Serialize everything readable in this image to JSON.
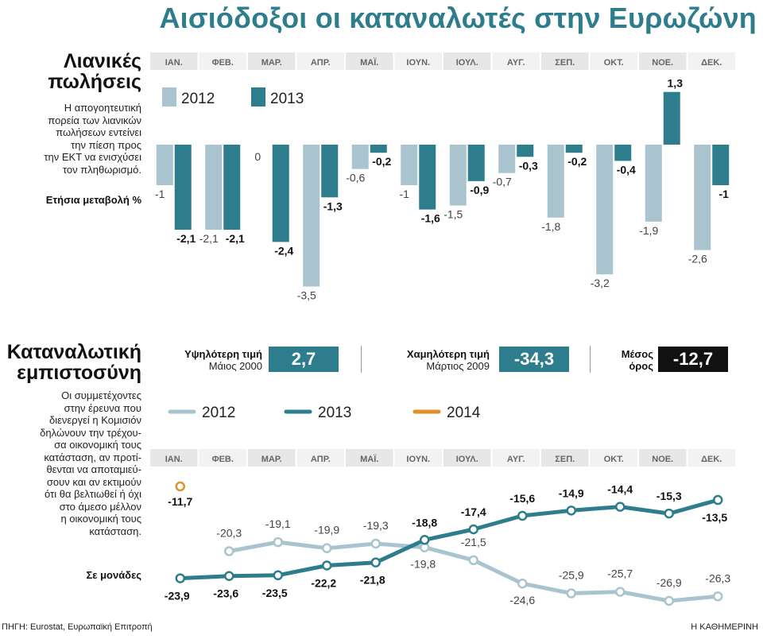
{
  "title": "Αισιόδοξοι οι καταναλωτές στην Ευρωζώνη",
  "retail": {
    "heading_line1": "Λιανικές",
    "heading_line2": "πωλήσεις",
    "description": [
      "Η απογοητευτική",
      "πορεία των λιανικών",
      "πωλήσεων εντείνει",
      "την πίεση προς",
      "την ΕΚΤ να ενισχύσει",
      "τον πληθωρισμό."
    ],
    "unit": "Ετήσια μεταβολή %"
  },
  "confidence": {
    "heading_line1": "Καταναλωτική",
    "heading_line2": "εμπιστοσύνη",
    "description": [
      "Οι συμμετέχοντες",
      "στην έρευνα που",
      "διενεργεί η Κομισιόν",
      "δηλώνουν την τρέχου-",
      "σα οικονομική τους",
      "κατάσταση, αν προτί-",
      "θενται να αποταμιεύ-",
      "σουν και αν εκτιμούν",
      "ότι θα βελτιωθεί ή όχι",
      "στο άμεσο μέλλον",
      "η οικονομική τους",
      "κατάσταση."
    ],
    "unit": "Σε μονάδες",
    "stats": {
      "highest_label": "Υψηλότερη τιμή",
      "highest_date": "Μάιος 2000",
      "highest_value": "2,7",
      "lowest_label": "Χαμηλότερη τιμή",
      "lowest_date": "Μάρτιος 2009",
      "lowest_value": "-34,3",
      "average_label_1": "Μέσος",
      "average_label_2": "όρος",
      "average_value": "-12,7"
    }
  },
  "colors": {
    "c2012": "#a9c4cf",
    "c2013": "#2e7d8c",
    "c2014": "#e0902a",
    "header_band": "#ececec",
    "dark_box": "#111111"
  },
  "footer": {
    "source": "ΠΗΓΗ: Eurostat, Ευρωπαϊκή Επιτροπή",
    "brand": "Η ΚΑΘΗΜΕΡΙΝΗ"
  },
  "chart_data": [
    {
      "type": "bar",
      "title": "Λιανικές πωλήσεις",
      "ylabel": "Ετήσια μεταβολή %",
      "categories": [
        "ΙΑΝ.",
        "ΦΕΒ.",
        "ΜΑΡ.",
        "ΑΠΡ.",
        "ΜΑΪ.",
        "ΙΟΥΝ.",
        "ΙΟΥΛ.",
        "ΑΥΓ.",
        "ΣΕΠ.",
        "ΟΚΤ.",
        "ΝΟΕ.",
        "ΔΕΚ."
      ],
      "series": [
        {
          "name": "2012",
          "values": [
            -1,
            -2.1,
            0,
            -3.5,
            -0.6,
            -1,
            -1.5,
            -0.7,
            -1.8,
            -3.2,
            -1.9,
            -2.6
          ],
          "labels": [
            "-1",
            "-2,1",
            "0",
            "-3,5",
            "-0,6",
            "-1",
            "-1,5",
            "-0,7",
            "-1,8",
            "-3,2",
            "-1,9",
            "-2,6"
          ]
        },
        {
          "name": "2013",
          "values": [
            -2.1,
            -2.1,
            -2.4,
            -1.3,
            -0.2,
            -1.6,
            -0.9,
            -0.3,
            -0.2,
            -0.4,
            1.3,
            -1
          ],
          "labels": [
            "-2,1",
            "-2,1",
            "-2,4",
            "-1,3",
            "-0,2",
            "-1,6",
            "-0,9",
            "-0,3",
            "-0,2",
            "-0,4",
            "1,3",
            "-1"
          ]
        }
      ],
      "ylim": [
        -3.5,
        1.3
      ],
      "legend": "top-left"
    },
    {
      "type": "line",
      "title": "Καταναλωτική εμπιστοσύνη",
      "ylabel": "Σε μονάδες",
      "categories": [
        "ΙΑΝ.",
        "ΦΕΒ.",
        "ΜΑΡ.",
        "ΑΠΡ.",
        "ΜΑΪ.",
        "ΙΟΥΝ.",
        "ΙΟΥΛ.",
        "ΑΥΓ.",
        "ΣΕΠ.",
        "ΟΚΤ.",
        "ΝΟΕ.",
        "ΔΕΚ."
      ],
      "series": [
        {
          "name": "2012",
          "values": [
            null,
            -20.3,
            -19.1,
            -19.9,
            -19.3,
            -19.8,
            -21.5,
            -24.6,
            -25.9,
            -25.7,
            -26.9,
            -26.3
          ],
          "labels": [
            "",
            "-20,3",
            "-19,1",
            "-19,9",
            "-19,3",
            "-19,8",
            "-21,5",
            "-24,6",
            "-25,9",
            "-25,7",
            "-26,9",
            "-26,3"
          ]
        },
        {
          "name": "2013",
          "values": [
            -23.9,
            -23.6,
            -23.5,
            -22.2,
            -21.8,
            -18.8,
            -17.4,
            -15.6,
            -14.9,
            -14.4,
            -15.3,
            -13.5
          ],
          "labels": [
            "-23,9",
            "-23,6",
            "-23,5",
            "-22,2",
            "-21,8",
            "-18,8",
            "-17,4",
            "-15,6",
            "-14,9",
            "-14,4",
            "-15,3",
            "-13,5"
          ]
        },
        {
          "name": "2014",
          "values": [
            -11.7,
            null,
            null,
            null,
            null,
            null,
            null,
            null,
            null,
            null,
            null,
            null
          ],
          "labels": [
            "-11,7",
            "",
            "",
            "",
            "",
            "",
            "",
            "",
            "",
            "",
            "",
            ""
          ]
        }
      ],
      "ylim": [
        -28,
        -10
      ],
      "legend": "top"
    }
  ]
}
